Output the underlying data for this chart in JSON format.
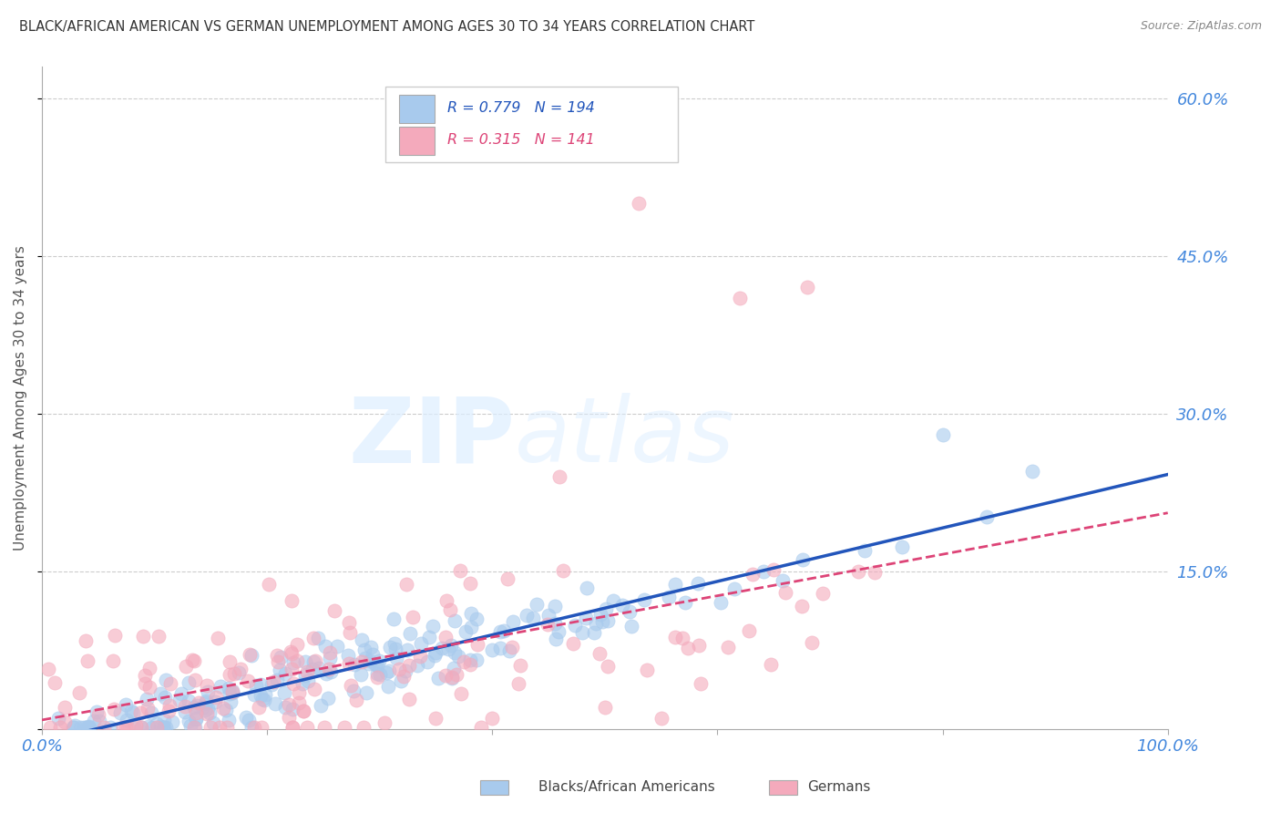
{
  "title": "BLACK/AFRICAN AMERICAN VS GERMAN UNEMPLOYMENT AMONG AGES 30 TO 34 YEARS CORRELATION CHART",
  "source": "Source: ZipAtlas.com",
  "ylabel_label": "Unemployment Among Ages 30 to 34 years",
  "yticks": [
    0.0,
    0.15,
    0.3,
    0.45,
    0.6
  ],
  "ytick_labels": [
    "",
    "15.0%",
    "30.0%",
    "45.0%",
    "60.0%"
  ],
  "xticks": [
    0.0,
    0.2,
    0.4,
    0.6,
    0.8,
    1.0
  ],
  "xtick_labels": [
    "0.0%",
    "",
    "",
    "",
    "",
    "100.0%"
  ],
  "blue_R": 0.779,
  "blue_N": 194,
  "pink_R": 0.315,
  "pink_N": 141,
  "blue_color": "#A8CAED",
  "pink_color": "#F4AABC",
  "blue_line_color": "#2255BB",
  "pink_line_color": "#DD4477",
  "legend_label_blue": "Blacks/African Americans",
  "legend_label_pink": "Germans",
  "watermark_zip": "ZIP",
  "watermark_atlas": "atlas",
  "background_color": "#FFFFFF",
  "grid_color": "#CCCCCC",
  "title_color": "#333333",
  "axis_label_color": "#4488DD",
  "seed_blue": 42,
  "seed_pink": 77
}
